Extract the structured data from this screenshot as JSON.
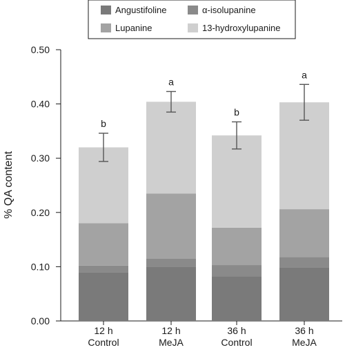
{
  "chart_data": {
    "type": "bar",
    "stacked": true,
    "categories": [
      [
        "12 h",
        "Control"
      ],
      [
        "12 h",
        "MeJA"
      ],
      [
        "36 h",
        "Control"
      ],
      [
        "36 h",
        "MeJA"
      ]
    ],
    "series": [
      {
        "name": "Angustifoline",
        "color": "#7a7a7a",
        "values": [
          0.09,
          0.1,
          0.082,
          0.099
        ]
      },
      {
        "name": "α-isolupanine",
        "color": "#8a8a8a",
        "values": [
          0.012,
          0.015,
          0.021,
          0.019
        ]
      },
      {
        "name": "Lupanine",
        "color": "#a3a3a3",
        "values": [
          0.078,
          0.12,
          0.069,
          0.088
        ]
      },
      {
        "name": "13-hydroxylupanine",
        "color": "#cfcfcf",
        "values": [
          0.14,
          0.169,
          0.17,
          0.197
        ]
      }
    ],
    "error_bars": [
      0.026,
      0.019,
      0.025,
      0.033
    ],
    "significance": [
      "b",
      "a",
      "b",
      "a"
    ],
    "ylabel": "% QA content",
    "xlabel": "",
    "ylim": [
      0,
      0.5
    ],
    "yticks": [
      "0.00",
      "0.10",
      "0.20",
      "0.30",
      "0.40",
      "0.50"
    ],
    "ytick_values": [
      0,
      0.1,
      0.2,
      0.3,
      0.4,
      0.5
    ],
    "legend": {
      "placement": "top",
      "columns": 2,
      "entries": [
        {
          "label": "Angustifoline",
          "color": "#7a7a7a"
        },
        {
          "label": "α-isolupanine",
          "color": "#8a8a8a"
        },
        {
          "label": "Lupanine",
          "color": "#a3a3a3"
        },
        {
          "label": "13-hydroxylupanine",
          "color": "#cfcfcf"
        }
      ]
    },
    "grid": false
  }
}
